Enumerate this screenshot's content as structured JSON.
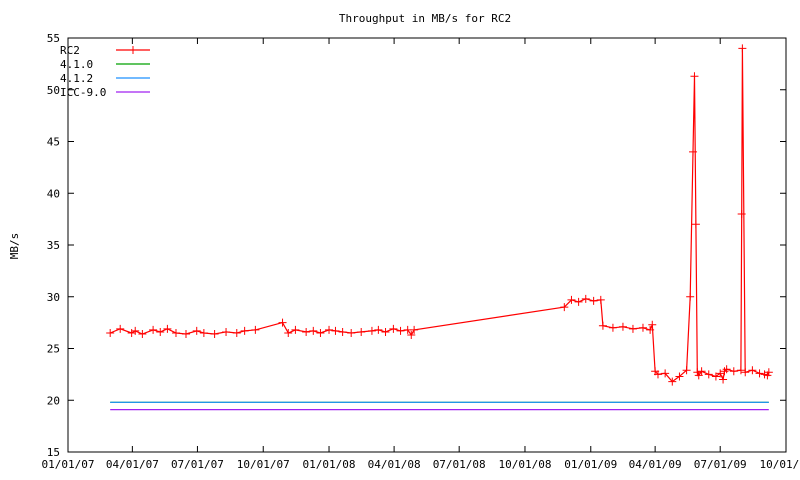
{
  "chart_data": {
    "type": "line",
    "title": "Throughput in MB/s for RC2",
    "xlabel": "",
    "ylabel": "MB/s",
    "ylim": [
      15,
      55
    ],
    "yticks": [
      15,
      20,
      25,
      30,
      35,
      40,
      45,
      50,
      55
    ],
    "xlim": [
      "2007-01-01",
      "2009-10-01"
    ],
    "xtick_labels": [
      "01/01/07",
      "04/01/07",
      "07/01/07",
      "10/01/07",
      "01/01/08",
      "04/01/08",
      "07/01/08",
      "10/01/08",
      "01/01/09",
      "04/01/09",
      "07/01/09",
      "10/01/09"
    ],
    "grid": false,
    "legend_position": "top-left",
    "series": [
      {
        "name": "RC2",
        "color": "#ff0000",
        "marker": "plus",
        "x": [
          "2007-03-01",
          "2007-03-15",
          "2007-03-31",
          "2007-04-05",
          "2007-04-15",
          "2007-04-30",
          "2007-05-10",
          "2007-05-20",
          "2007-06-01",
          "2007-06-15",
          "2007-06-30",
          "2007-07-10",
          "2007-07-25",
          "2007-08-10",
          "2007-08-25",
          "2007-09-05",
          "2007-09-20",
          "2007-10-28",
          "2007-11-05",
          "2007-11-15",
          "2007-11-30",
          "2007-12-10",
          "2007-12-20",
          "2008-01-01",
          "2008-01-10",
          "2008-01-20",
          "2008-02-01",
          "2008-02-15",
          "2008-03-01",
          "2008-03-10",
          "2008-03-20",
          "2008-03-31",
          "2008-04-10",
          "2008-04-20",
          "2008-04-25",
          "2008-04-29",
          "2008-11-25",
          "2008-12-05",
          "2008-12-15",
          "2008-12-25",
          "2009-01-05",
          "2009-01-15",
          "2009-01-18",
          "2009-02-01",
          "2009-02-15",
          "2009-03-01",
          "2009-03-15",
          "2009-03-25",
          "2009-03-28",
          "2009-04-01",
          "2009-04-05",
          "2009-04-15",
          "2009-04-25",
          "2009-05-05",
          "2009-05-15",
          "2009-05-20",
          "2009-05-24",
          "2009-05-26",
          "2009-05-28",
          "2009-05-30",
          "2009-06-01",
          "2009-06-05",
          "2009-06-15",
          "2009-06-25",
          "2009-07-01",
          "2009-07-05",
          "2009-07-07",
          "2009-07-10",
          "2009-07-20",
          "2009-07-30",
          "2009-07-31",
          "2009-08-01",
          "2009-08-05",
          "2009-08-15",
          "2009-08-25",
          "2009-09-01",
          "2009-09-05",
          "2009-09-07"
        ],
        "y": [
          26.5,
          26.9,
          26.5,
          26.7,
          26.4,
          26.8,
          26.6,
          26.9,
          26.5,
          26.4,
          26.7,
          26.5,
          26.4,
          26.6,
          26.5,
          26.7,
          26.8,
          27.5,
          26.5,
          26.8,
          26.6,
          26.7,
          26.5,
          26.8,
          26.7,
          26.6,
          26.5,
          26.6,
          26.7,
          26.8,
          26.6,
          26.9,
          26.7,
          26.8,
          26.3,
          26.8,
          29.0,
          29.7,
          29.5,
          29.8,
          29.6,
          29.7,
          27.2,
          27.0,
          27.1,
          26.9,
          27.0,
          26.8,
          27.3,
          22.8,
          22.5,
          22.6,
          21.8,
          22.3,
          22.9,
          30.0,
          44.0,
          51.3,
          37.0,
          22.7,
          22.4,
          22.8,
          22.5,
          22.3,
          22.6,
          22.0,
          22.8,
          23.0,
          22.8,
          22.9,
          38.0,
          54.0,
          22.7,
          22.9,
          22.6,
          22.5,
          22.4,
          22.7
        ]
      },
      {
        "name": "4.1.0",
        "color": "#00a000",
        "marker": "none",
        "x": [
          "2007-03-01",
          "2009-09-07"
        ],
        "y": [
          19.8,
          19.8
        ]
      },
      {
        "name": "4.1.2",
        "color": "#1e90ff",
        "marker": "none",
        "x": [
          "2007-03-01",
          "2009-09-07"
        ],
        "y": [
          19.8,
          19.8
        ]
      },
      {
        "name": "ICC-9.0",
        "color": "#a020f0",
        "marker": "none",
        "x": [
          "2007-03-01",
          "2009-09-07"
        ],
        "y": [
          19.1,
          19.1
        ]
      }
    ]
  }
}
